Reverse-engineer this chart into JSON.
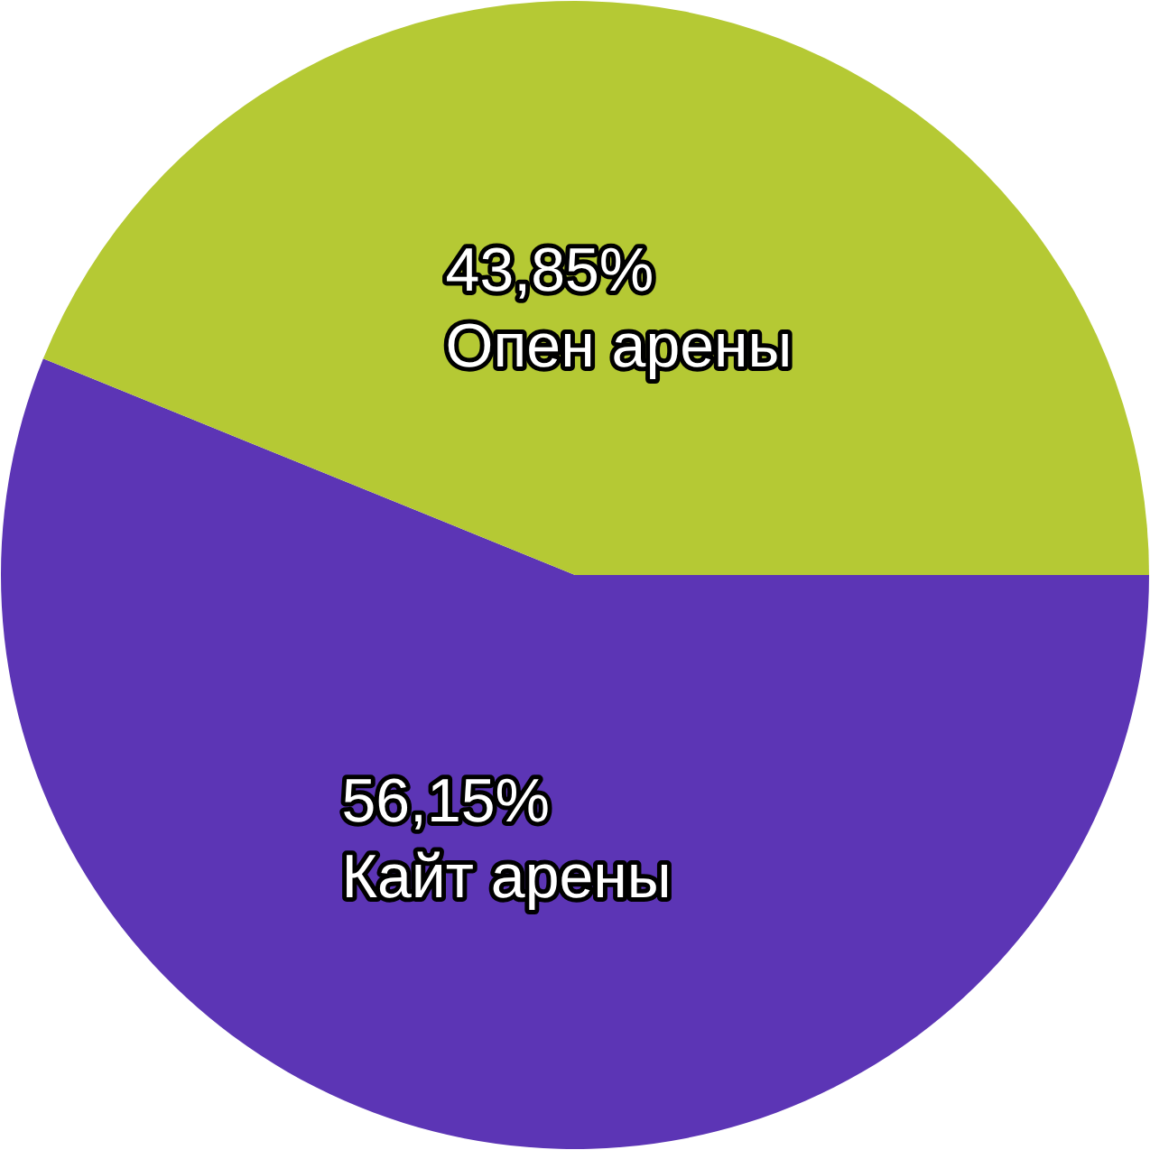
{
  "chart_data": {
    "type": "pie",
    "categories": [
      "Опен арены",
      "Кайт арены"
    ],
    "values": [
      43.85,
      56.15
    ],
    "colors": [
      "#b5c934",
      "#5c35b5"
    ],
    "value_labels": [
      "43,85%",
      "56,15%"
    ],
    "legend": false
  }
}
